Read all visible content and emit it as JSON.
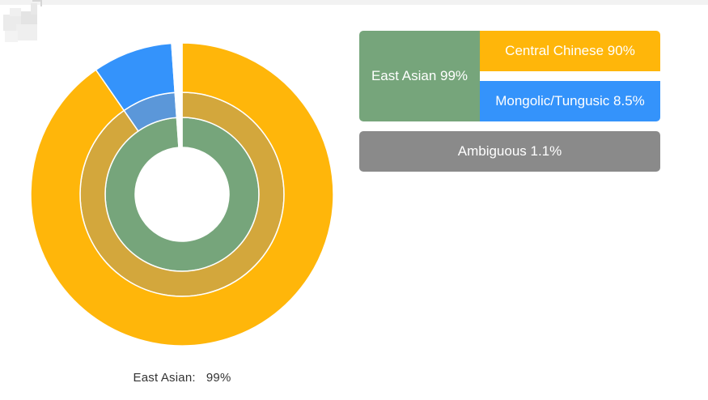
{
  "colors": {
    "east_asian": "#76A57B",
    "central_chinese": "#FFB60A",
    "mongolic_tungusic": "#3493FB",
    "ambiguous": "#8A8A8A",
    "east_asian_mid_ring": "#D3A73C",
    "mongolic_mid_ring": "#5B97D9"
  },
  "caption": {
    "label": "East Asian:",
    "value": "99%"
  },
  "legend": {
    "east_asian": "East Asian 99%",
    "central_chinese": "Central Chinese 90%",
    "mongolic_tungusic": "Mongolic/Tungusic 8.5%",
    "ambiguous": "Ambiguous 1.1%"
  },
  "chart_data": {
    "type": "pie",
    "style": "nested-donut",
    "legend_placement": "right",
    "rings": [
      {
        "level": "inner",
        "slices": [
          {
            "name": "East Asian",
            "value": 99,
            "color": "#76A57B"
          },
          {
            "name": "Ambiguous",
            "value": 1.1,
            "color": "#FFFFFF"
          }
        ]
      },
      {
        "level": "middle",
        "slices": [
          {
            "name": "Central Chinese",
            "value": 90,
            "color": "#D3A73C"
          },
          {
            "name": "Mongolic/Tungusic",
            "value": 8.5,
            "color": "#5B97D9"
          },
          {
            "name": "Ambiguous",
            "value": 1.1,
            "color": "#FFFFFF"
          }
        ]
      },
      {
        "level": "outer",
        "slices": [
          {
            "name": "Central Chinese",
            "value": 90,
            "color": "#FFB60A"
          },
          {
            "name": "Mongolic/Tungusic",
            "value": 8.5,
            "color": "#3493FB"
          },
          {
            "name": "Ambiguous",
            "value": 1.1,
            "color": "#FFFFFF"
          }
        ]
      }
    ]
  }
}
